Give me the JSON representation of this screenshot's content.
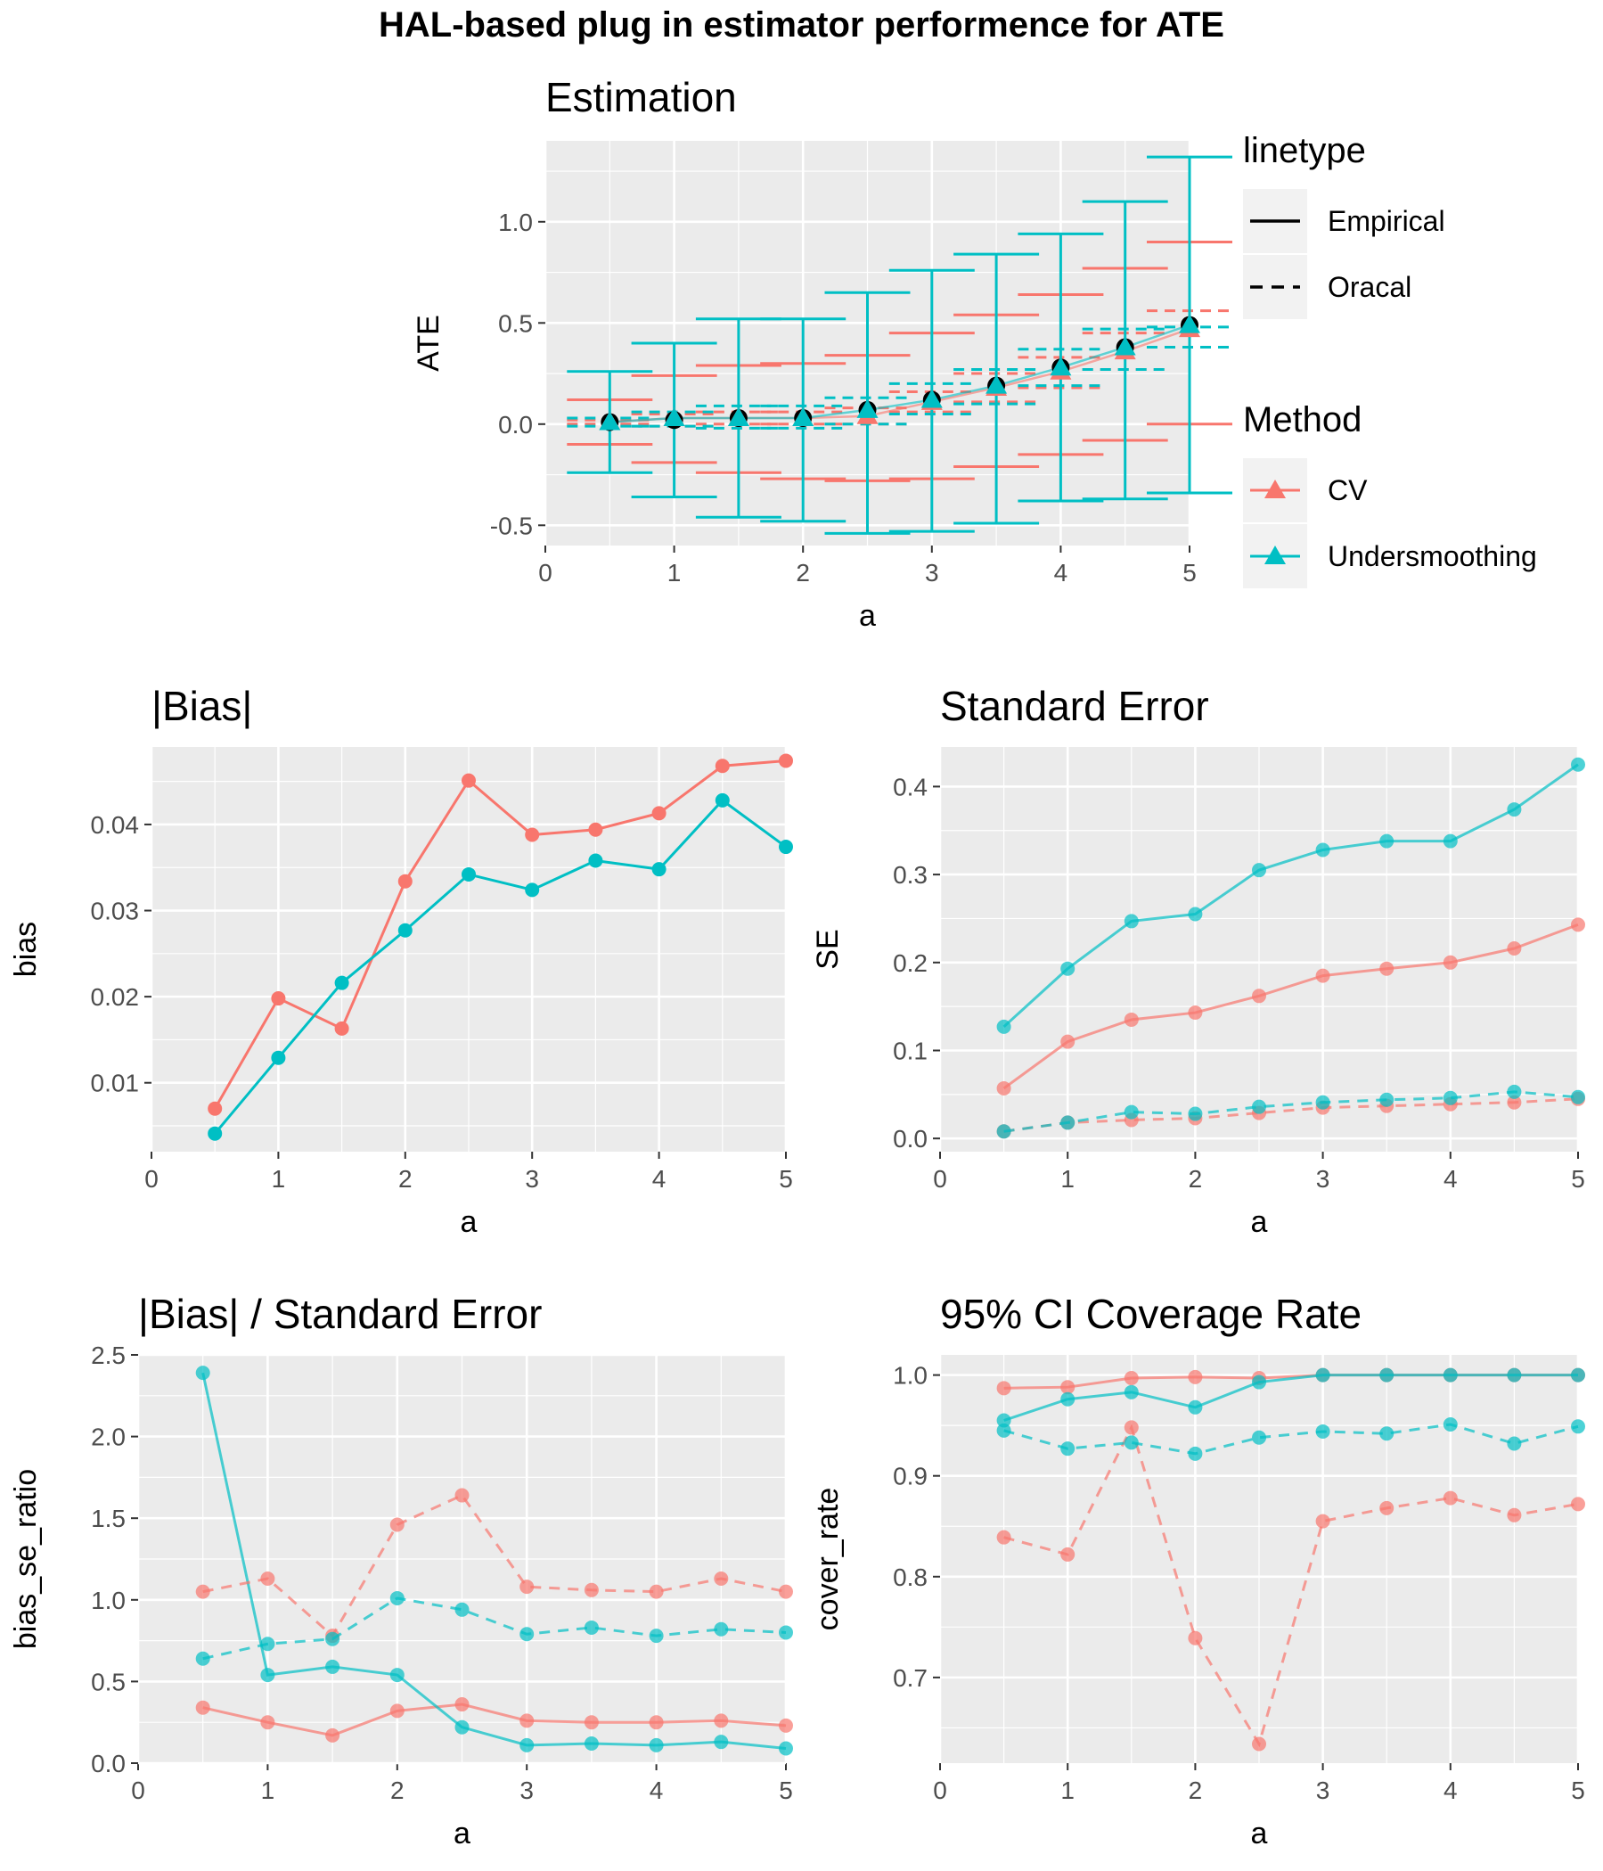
{
  "title": "HAL-based plug in estimator performence for ATE",
  "colors": {
    "cv": "#F8766D",
    "undersmoothing": "#00BFC4",
    "truth": "#000000",
    "panel_bg": "#EBEBEB",
    "grid": "#FFFFFF"
  },
  "legend": {
    "linetype_title": "linetype",
    "linetype_items": [
      "Empirical",
      "Oracal"
    ],
    "method_title": "Method",
    "method_items": [
      "CV",
      "Undersmoothing"
    ]
  },
  "chart_data": [
    {
      "id": "estimation",
      "type": "errorbar",
      "title": "Estimation",
      "xlabel": "a",
      "ylabel": "ATE",
      "xlim": [
        0,
        5
      ],
      "ylim": [
        -0.6,
        1.4
      ],
      "xticks": [
        "0",
        "1",
        "2",
        "3",
        "4",
        "5"
      ],
      "yticks": [
        "-0.5",
        "0.0",
        "0.5",
        "1.0"
      ],
      "x": [
        0.5,
        1,
        1.5,
        2,
        2.5,
        3,
        3.5,
        4,
        4.5,
        5
      ],
      "truth": [
        0.01,
        0.02,
        0.03,
        0.03,
        0.07,
        0.12,
        0.19,
        0.28,
        0.38,
        0.49
      ],
      "series": [
        {
          "name": "CV",
          "estimate": [
            0.01,
            0.03,
            0.03,
            0.03,
            0.04,
            0.11,
            0.18,
            0.26,
            0.36,
            0.47
          ],
          "empirical_lower": [
            -0.1,
            -0.19,
            -0.24,
            -0.27,
            -0.28,
            -0.27,
            -0.21,
            -0.15,
            -0.08,
            0.0
          ],
          "empirical_upper": [
            0.12,
            0.24,
            0.29,
            0.3,
            0.34,
            0.45,
            0.54,
            0.64,
            0.77,
            0.9
          ],
          "oracal_lower": [
            0.0,
            -0.01,
            0.0,
            0.0,
            0.0,
            0.06,
            0.11,
            0.18,
            0.27,
            0.38
          ],
          "oracal_upper": [
            0.02,
            0.05,
            0.06,
            0.06,
            0.08,
            0.16,
            0.25,
            0.33,
            0.45,
            0.56
          ]
        },
        {
          "name": "Undersmoothing",
          "estimate": [
            0.01,
            0.03,
            0.03,
            0.03,
            0.07,
            0.12,
            0.19,
            0.28,
            0.38,
            0.49
          ],
          "empirical_lower": [
            -0.24,
            -0.36,
            -0.46,
            -0.48,
            -0.54,
            -0.53,
            -0.49,
            -0.38,
            -0.37,
            -0.34
          ],
          "empirical_upper": [
            0.26,
            0.4,
            0.52,
            0.52,
            0.65,
            0.76,
            0.84,
            0.94,
            1.1,
            1.32
          ],
          "oracal_lower": [
            -0.01,
            -0.01,
            -0.02,
            -0.02,
            0.0,
            0.05,
            0.1,
            0.19,
            0.27,
            0.38
          ],
          "oracal_upper": [
            0.03,
            0.06,
            0.09,
            0.09,
            0.13,
            0.2,
            0.27,
            0.37,
            0.47,
            0.48
          ]
        }
      ]
    },
    {
      "id": "bias",
      "type": "line",
      "title": "|Bias|",
      "xlabel": "a",
      "ylabel": "bias",
      "xlim": [
        0,
        5
      ],
      "ylim": [
        0.002,
        0.049
      ],
      "xticks": [
        "0",
        "1",
        "2",
        "3",
        "4",
        "5"
      ],
      "yticks": [
        "0.01",
        "0.02",
        "0.03",
        "0.04"
      ],
      "x": [
        0.5,
        1,
        1.5,
        2,
        2.5,
        3,
        3.5,
        4,
        4.5,
        5
      ],
      "series": [
        {
          "name": "CV",
          "linetype": "Empirical",
          "values": [
            0.007,
            0.0198,
            0.0163,
            0.0334,
            0.0451,
            0.0388,
            0.0394,
            0.0413,
            0.0468,
            0.0474
          ]
        },
        {
          "name": "Undersmoothing",
          "linetype": "Empirical",
          "values": [
            0.0041,
            0.0129,
            0.0216,
            0.0277,
            0.0342,
            0.0324,
            0.0358,
            0.0348,
            0.0428,
            0.0374
          ]
        }
      ]
    },
    {
      "id": "se",
      "type": "line",
      "title": "Standard Error",
      "xlabel": "a",
      "ylabel": "SE",
      "xlim": [
        0,
        5
      ],
      "ylim": [
        -0.015,
        0.445
      ],
      "xticks": [
        "0",
        "1",
        "2",
        "3",
        "4",
        "5"
      ],
      "yticks": [
        "0.0",
        "0.1",
        "0.2",
        "0.3",
        "0.4"
      ],
      "x": [
        0.5,
        1,
        1.5,
        2,
        2.5,
        3,
        3.5,
        4,
        4.5,
        5
      ],
      "series": [
        {
          "name": "CV",
          "linetype": "Empirical",
          "values": [
            0.057,
            0.11,
            0.135,
            0.143,
            0.162,
            0.185,
            0.193,
            0.2,
            0.216,
            0.243
          ]
        },
        {
          "name": "Undersmoothing",
          "linetype": "Empirical",
          "values": [
            0.127,
            0.193,
            0.247,
            0.255,
            0.305,
            0.328,
            0.338,
            0.338,
            0.374,
            0.425
          ]
        },
        {
          "name": "CV",
          "linetype": "Oracal",
          "values": [
            0.008,
            0.018,
            0.021,
            0.023,
            0.029,
            0.035,
            0.037,
            0.039,
            0.041,
            0.045
          ]
        },
        {
          "name": "Undersmoothing",
          "linetype": "Oracal",
          "values": [
            0.008,
            0.018,
            0.03,
            0.028,
            0.036,
            0.041,
            0.044,
            0.046,
            0.053,
            0.047
          ]
        }
      ]
    },
    {
      "id": "ratio",
      "type": "line",
      "title": "|Bias| / Standard Error",
      "xlabel": "a",
      "ylabel": "bias_se_ratio",
      "xlim": [
        0,
        5
      ],
      "ylim": [
        0,
        2.5
      ],
      "xticks": [
        "0",
        "1",
        "2",
        "3",
        "4",
        "5"
      ],
      "yticks": [
        "0.0",
        "0.5",
        "1.0",
        "1.5",
        "2.0",
        "2.5"
      ],
      "x": [
        0.5,
        1,
        1.5,
        2,
        2.5,
        3,
        3.5,
        4,
        4.5,
        5
      ],
      "series": [
        {
          "name": "CV",
          "linetype": "Empirical",
          "values": [
            0.34,
            0.25,
            0.17,
            0.32,
            0.36,
            0.26,
            0.25,
            0.25,
            0.26,
            0.23
          ]
        },
        {
          "name": "Undersmoothing",
          "linetype": "Empirical",
          "values": [
            2.39,
            0.54,
            0.59,
            0.54,
            0.22,
            0.11,
            0.12,
            0.11,
            0.13,
            0.09
          ]
        },
        {
          "name": "CV",
          "linetype": "Oracal",
          "values": [
            1.05,
            1.13,
            0.78,
            1.46,
            1.64,
            1.08,
            1.06,
            1.05,
            1.13,
            1.05
          ]
        },
        {
          "name": "Undersmoothing",
          "linetype": "Oracal",
          "values": [
            0.64,
            0.73,
            0.76,
            1.01,
            0.94,
            0.79,
            0.83,
            0.78,
            0.82,
            0.8
          ]
        }
      ]
    },
    {
      "id": "coverage",
      "type": "line",
      "title": "95% CI Coverage Rate",
      "xlabel": "a",
      "ylabel": "cover_rate",
      "xlim": [
        0,
        5
      ],
      "ylim": [
        0.615,
        1.02
      ],
      "xticks": [
        "0",
        "1",
        "2",
        "3",
        "4",
        "5"
      ],
      "yticks": [
        "0.7",
        "0.8",
        "0.9",
        "1.0"
      ],
      "x": [
        0.5,
        1,
        1.5,
        2,
        2.5,
        3,
        3.5,
        4,
        4.5,
        5
      ],
      "series": [
        {
          "name": "CV",
          "linetype": "Empirical",
          "values": [
            0.987,
            0.988,
            0.997,
            0.998,
            0.997,
            1.0,
            1.0,
            1.0,
            1.0,
            1.0
          ]
        },
        {
          "name": "Undersmoothing",
          "linetype": "Empirical",
          "values": [
            0.955,
            0.976,
            0.983,
            0.968,
            0.993,
            1.0,
            1.0,
            1.0,
            1.0,
            1.0
          ]
        },
        {
          "name": "CV",
          "linetype": "Oracal",
          "values": [
            0.839,
            0.822,
            0.948,
            0.739,
            0.634,
            0.855,
            0.868,
            0.878,
            0.861,
            0.872
          ]
        },
        {
          "name": "Undersmoothing",
          "linetype": "Oracal",
          "values": [
            0.945,
            0.927,
            0.933,
            0.922,
            0.938,
            0.944,
            0.942,
            0.951,
            0.932,
            0.949
          ]
        }
      ]
    }
  ]
}
